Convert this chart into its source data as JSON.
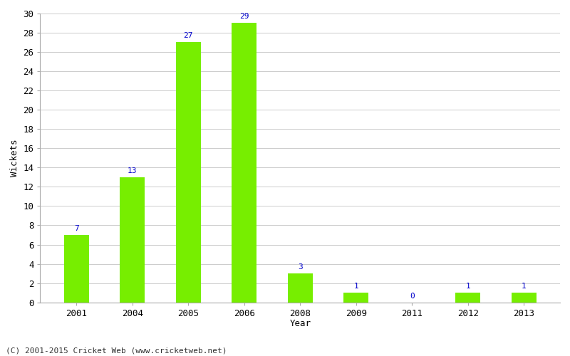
{
  "categories": [
    "2001",
    "2004",
    "2005",
    "2006",
    "2008",
    "2009",
    "2011",
    "2012",
    "2013"
  ],
  "values": [
    7,
    13,
    27,
    29,
    3,
    1,
    0,
    1,
    1
  ],
  "bar_color": "#77ee00",
  "bar_edge_color": "#77ee00",
  "label_color": "#0000cc",
  "ylabel": "Wickets",
  "xlabel": "Year",
  "ylim": [
    0,
    30
  ],
  "yticks": [
    0,
    2,
    4,
    6,
    8,
    10,
    12,
    14,
    16,
    18,
    20,
    22,
    24,
    26,
    28,
    30
  ],
  "grid_color": "#cccccc",
  "background_color": "#ffffff",
  "footer": "(C) 2001-2015 Cricket Web (www.cricketweb.net)",
  "label_fontsize": 8,
  "axis_fontsize": 9,
  "footer_fontsize": 8,
  "bar_width": 0.45
}
